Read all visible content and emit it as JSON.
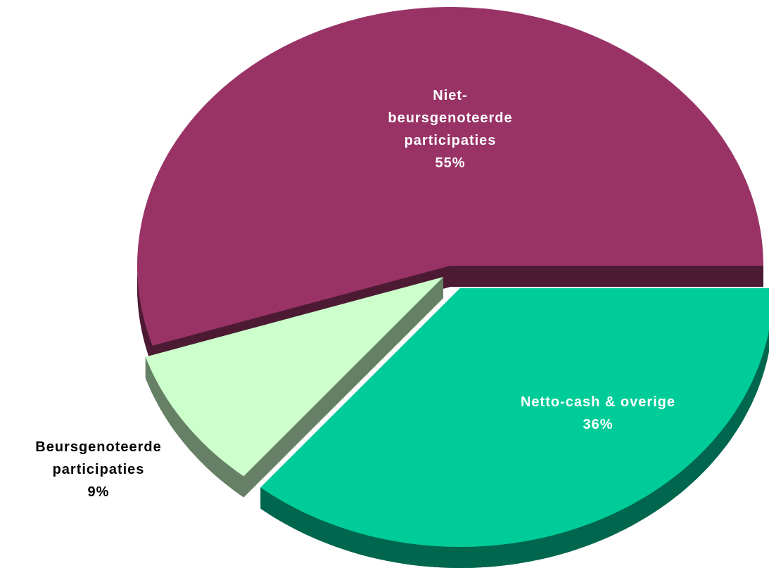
{
  "chart_data": {
    "type": "pie",
    "categories": [
      "Niet-beursgenoteerde participaties",
      "Beursgenoteerde participaties",
      "Netto-cash & overige"
    ],
    "values": [
      55,
      9,
      36
    ],
    "value_labels": [
      "55%",
      "9%",
      "36%"
    ],
    "colors": [
      "#993366",
      "#ccffcc",
      "#00cc99"
    ]
  }
}
